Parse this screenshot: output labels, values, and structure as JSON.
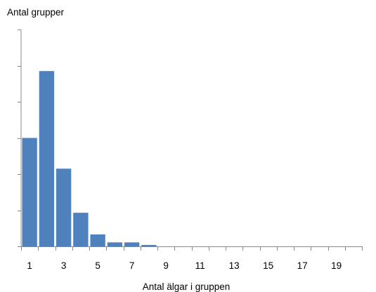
{
  "chart_data": {
    "type": "bar",
    "title": "",
    "ylabel": "Antal grupper",
    "xlabel": "Antal älgar i gruppen",
    "categories": [
      "1",
      "2",
      "3",
      "4",
      "5",
      "6",
      "7",
      "8",
      "9",
      "10",
      "11",
      "12",
      "13",
      "14",
      "15",
      "16",
      "17",
      "18",
      "19",
      "20"
    ],
    "x_tick_labels": [
      "1",
      "3",
      "5",
      "7",
      "9",
      "11",
      "13",
      "15",
      "17",
      "19"
    ],
    "values": [
      30,
      48.5,
      21.5,
      9.3,
      3.3,
      1.1,
      1.1,
      0.4,
      0,
      0,
      0,
      0,
      0,
      0,
      0,
      0,
      0,
      0,
      0,
      0
    ],
    "ylim": [
      0,
      60
    ],
    "y_tick_step": 10,
    "y_tick_labels_shown": false,
    "bar_color": "#4f81bd",
    "grid": false,
    "legend": "none"
  }
}
